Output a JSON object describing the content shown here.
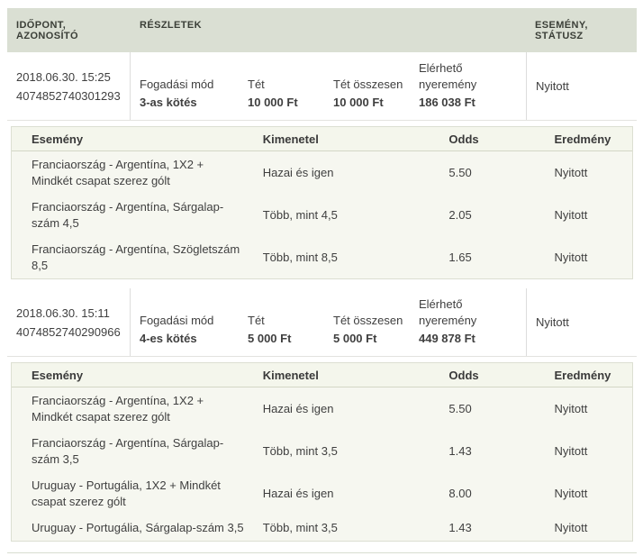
{
  "colors": {
    "header_bar_bg": "#dadfd3",
    "legs_panel_bg": "#f6f7f0",
    "legs_panel_border": "#dcdfd2",
    "row_divider": "#e3e3df",
    "text": "#3f3f3f"
  },
  "table": {
    "columns": [
      "IDŐPONT, AZONOSÍTÓ",
      "RÉSZLETEK",
      "ESEMÉNY, STÁTUSZ"
    ],
    "details_labels": {
      "mode": "Fogadási mód",
      "stake": "Tét",
      "stake_total": "Tét összesen",
      "winnings": "Elérhető nyeremény"
    },
    "legs_columns": [
      "Esemény",
      "Kimenetel",
      "Odds",
      "Eredmény"
    ],
    "bets": [
      {
        "datetime": "2018.06.30. 15:25",
        "id": "4074852740301293",
        "mode": "3-as kötés",
        "stake": "10 000 Ft",
        "stake_total": "10 000 Ft",
        "winnings": "186 038 Ft",
        "status": "Nyitott",
        "legs": [
          {
            "event": "Franciaország - Argentína, 1X2 + Mindkét csapat szerez gólt",
            "outcome": "Hazai és igen",
            "odds": "5.50",
            "result": "Nyitott"
          },
          {
            "event": "Franciaország - Argentína, Sárgalap-szám 4,5",
            "outcome": "Több, mint 4,5",
            "odds": "2.05",
            "result": "Nyitott"
          },
          {
            "event": "Franciaország - Argentína, Szögletszám 8,5",
            "outcome": "Több, mint 8,5",
            "odds": "1.65",
            "result": "Nyitott"
          }
        ]
      },
      {
        "datetime": "2018.06.30. 15:11",
        "id": "4074852740290966",
        "mode": "4-es kötés",
        "stake": "5 000 Ft",
        "stake_total": "5 000 Ft",
        "winnings": "449 878 Ft",
        "status": "Nyitott",
        "legs": [
          {
            "event": "Franciaország - Argentína, 1X2 + Mindkét csapat szerez gólt",
            "outcome": "Hazai és igen",
            "odds": "5.50",
            "result": "Nyitott"
          },
          {
            "event": "Franciaország - Argentína, Sárgalap-szám 3,5",
            "outcome": "Több, mint 3,5",
            "odds": "1.43",
            "result": "Nyitott"
          },
          {
            "event": "Uruguay - Portugália, 1X2 + Mindkét csapat szerez gólt",
            "outcome": "Hazai és igen",
            "odds": "8.00",
            "result": "Nyitott"
          },
          {
            "event": "Uruguay - Portugália, Sárgalap-szám 3,5",
            "outcome": "Több, mint 3,5",
            "odds": "1.43",
            "result": "Nyitott"
          }
        ]
      }
    ]
  }
}
